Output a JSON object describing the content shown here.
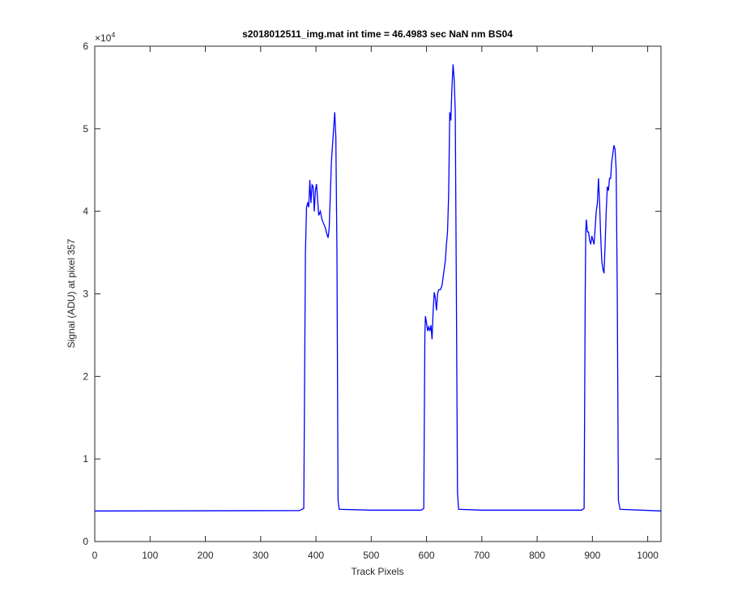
{
  "chart_data": {
    "type": "line",
    "title": "s2018012511_img.mat int time = 46.4983 sec  NaN nm BS04",
    "x_label": "Track Pixels",
    "y_label": "Signal (ADU) at pixel 357",
    "y_multiplier": "×10",
    "y_multiplier_exponent": "4",
    "xlim": [
      0,
      1024
    ],
    "xticks": [
      0,
      100,
      200,
      300,
      400,
      500,
      600,
      700,
      800,
      900,
      1000
    ],
    "ylim": [
      0,
      6
    ],
    "yticks": [
      0,
      1,
      2,
      3,
      4,
      5,
      6
    ],
    "grid": false,
    "series": [
      {
        "color": "#0000ff",
        "x": [
          0,
          370,
          378,
          381,
          383,
          385,
          387,
          389,
          391,
          393,
          395,
          397,
          399,
          401,
          403,
          405,
          408,
          411,
          414,
          417,
          420,
          422,
          424,
          426,
          428,
          430,
          432,
          434,
          436,
          438,
          440,
          442,
          500,
          590,
          595,
          597,
          598,
          600,
          602,
          604,
          606,
          608,
          610,
          612,
          614,
          616,
          618,
          620,
          622,
          625,
          628,
          630,
          632,
          634,
          636,
          638,
          640,
          642,
          644,
          646,
          648,
          650,
          652,
          654,
          656,
          658,
          700,
          880,
          885,
          887,
          888,
          889,
          891,
          893,
          895,
          897,
          899,
          901,
          903,
          905,
          907,
          909,
          911,
          913,
          915,
          917,
          919,
          921,
          923,
          925,
          927,
          929,
          931,
          933,
          935,
          937,
          939,
          941,
          943,
          945,
          947,
          950,
          1024
        ],
        "values": [
          0.37,
          0.375,
          0.4,
          3.5,
          4.05,
          4.1,
          4.05,
          4.38,
          4.1,
          4.32,
          4.3,
          4.0,
          4.25,
          4.33,
          4.15,
          3.95,
          4.0,
          3.9,
          3.85,
          3.8,
          3.72,
          3.68,
          3.8,
          4.2,
          4.6,
          4.8,
          5.0,
          5.2,
          4.9,
          3.5,
          0.5,
          0.39,
          0.38,
          0.38,
          0.4,
          2.5,
          2.73,
          2.65,
          2.55,
          2.6,
          2.55,
          2.62,
          2.45,
          2.8,
          3.02,
          2.95,
          2.8,
          3.0,
          3.05,
          3.05,
          3.1,
          3.2,
          3.3,
          3.4,
          3.6,
          3.75,
          4.2,
          5.2,
          5.1,
          5.5,
          5.78,
          5.6,
          5.2,
          3.0,
          0.6,
          0.39,
          0.38,
          0.38,
          0.4,
          3.0,
          3.75,
          3.9,
          3.75,
          3.75,
          3.65,
          3.6,
          3.7,
          3.65,
          3.6,
          3.8,
          4.0,
          4.1,
          4.4,
          4.1,
          3.7,
          3.4,
          3.3,
          3.25,
          3.6,
          4.0,
          4.3,
          4.25,
          4.4,
          4.4,
          4.6,
          4.7,
          4.8,
          4.75,
          4.5,
          3.0,
          0.5,
          0.39,
          0.37
        ]
      }
    ]
  }
}
